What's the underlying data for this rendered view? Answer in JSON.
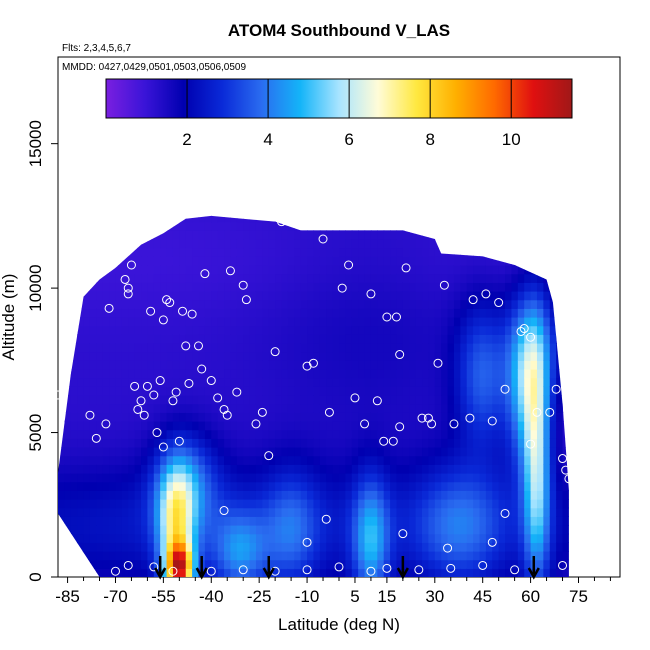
{
  "chart_data": {
    "type": "heatmap",
    "title": "ATOM4 Southbound V_LAS",
    "flights_label": "Flts: 2,3,4,5,6,7",
    "dates_label": "MMDD: 0427,0429,0501,0503,0506,0509",
    "xlabel": "Latitude (deg N)",
    "ylabel": "Altitude (m)",
    "xlim": [
      -88,
      88
    ],
    "ylim": [
      0,
      18000
    ],
    "x_ticks": [
      -85,
      -70,
      -55,
      -40,
      -25,
      -10,
      5,
      15,
      30,
      45,
      60,
      75
    ],
    "x_tick_labels": [
      "-85",
      "-70",
      "-55",
      "-40",
      "-25",
      "-10",
      "5",
      "15",
      "30",
      "45",
      "60",
      "75"
    ],
    "y_ticks": [
      0,
      5000,
      10000,
      15000
    ],
    "y_tick_labels": [
      "0",
      "5000",
      "10000",
      "15000"
    ],
    "colorbar": {
      "range": [
        0,
        11.5
      ],
      "ticks": [
        2,
        4,
        6,
        8,
        10
      ],
      "tick_labels": [
        "2",
        "4",
        "6",
        "8",
        "10"
      ],
      "colors": [
        "#7a1fe0",
        "#3a14d8",
        "#0000b0",
        "#0a2ad8",
        "#2a6cf0",
        "#14b4f8",
        "#a8e4ff",
        "#fffcd8",
        "#ffe840",
        "#ffb000",
        "#ff6a00",
        "#e01010",
        "#a01818"
      ]
    },
    "arrows_lat": [
      -56,
      -43,
      -22,
      20,
      61
    ],
    "grid": false
  }
}
